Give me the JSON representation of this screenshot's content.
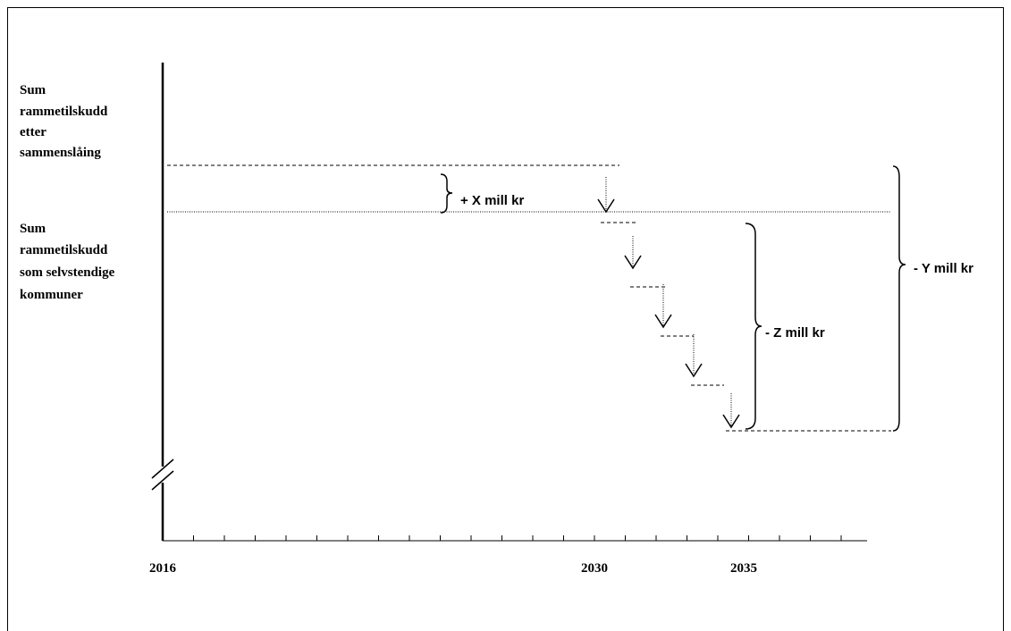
{
  "labels": {
    "merged": [
      "Sum",
      "rammetilskudd",
      "etter",
      "sammenslåing"
    ],
    "separate": [
      "Sum",
      "rammetilskudd",
      "som selvstendige",
      "kommuner"
    ]
  },
  "axis": {
    "years": [
      "2016",
      "2030",
      "2035"
    ]
  },
  "braces": {
    "x": "+ X mill kr",
    "z": "- Z mill kr",
    "y": "- Y mill kr"
  }
}
